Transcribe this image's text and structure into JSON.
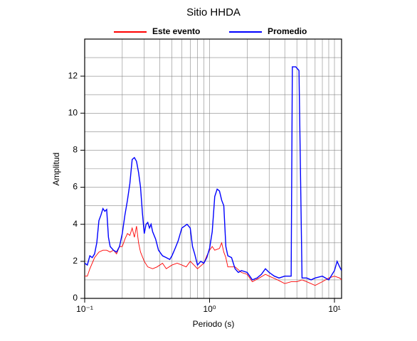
{
  "chart_data": {
    "type": "line",
    "title": "Sitio HHDA",
    "xlabel": "Periodo (s)",
    "ylabel": "Amplitud",
    "xscale": "log",
    "grid": true,
    "legend": "top",
    "xlim": [
      0.1,
      11.4
    ],
    "ylim": [
      0,
      14
    ],
    "xticks": [
      {
        "value": 0.1,
        "label": "10⁻¹"
      },
      {
        "value": 1,
        "label": "10⁰"
      },
      {
        "value": 10,
        "label": "10¹"
      }
    ],
    "xminor_ticks": [
      0.2,
      0.3,
      0.4,
      0.5,
      0.6,
      0.7,
      0.8,
      0.9,
      2,
      3,
      4,
      5,
      6,
      7,
      8,
      9
    ],
    "yticks": [
      0,
      2,
      4,
      6,
      8,
      10,
      12
    ],
    "yminor_ticks": [
      1,
      3,
      5,
      7,
      9,
      11,
      13
    ],
    "series": [
      {
        "name": "Este evento",
        "color": "#ff0000",
        "x": [
          0.1,
          0.105,
          0.11,
          0.12,
          0.13,
          0.14,
          0.15,
          0.16,
          0.17,
          0.18,
          0.19,
          0.2,
          0.21,
          0.22,
          0.23,
          0.24,
          0.25,
          0.26,
          0.27,
          0.28,
          0.3,
          0.32,
          0.35,
          0.38,
          0.42,
          0.45,
          0.5,
          0.55,
          0.6,
          0.65,
          0.7,
          0.75,
          0.8,
          0.9,
          0.95,
          1.0,
          1.05,
          1.1,
          1.2,
          1.25,
          1.3,
          1.35,
          1.4,
          1.6,
          1.8,
          2.0,
          2.2,
          2.5,
          2.8,
          3.0,
          3.5,
          4.0,
          4.5,
          5.0,
          5.5,
          6.0,
          7.0,
          8.0,
          9.0,
          10.0,
          11.0,
          11.4
        ],
        "values": [
          1.2,
          1.2,
          1.6,
          2.2,
          2.5,
          2.6,
          2.6,
          2.5,
          2.6,
          2.4,
          2.8,
          2.8,
          3.2,
          3.5,
          3.4,
          3.8,
          3.3,
          3.9,
          3.0,
          2.5,
          2.0,
          1.7,
          1.6,
          1.7,
          1.9,
          1.6,
          1.8,
          1.9,
          1.8,
          1.7,
          2.0,
          1.8,
          1.6,
          1.9,
          2.3,
          2.6,
          2.8,
          2.6,
          2.7,
          3.0,
          2.5,
          2.2,
          1.7,
          1.7,
          1.4,
          1.3,
          0.9,
          1.1,
          1.3,
          1.2,
          1.0,
          0.8,
          0.9,
          0.9,
          1.0,
          0.9,
          0.7,
          0.9,
          1.1,
          1.2,
          1.1,
          1.0
        ]
      },
      {
        "name": "Promedio",
        "color": "#0000ff",
        "x": [
          0.1,
          0.105,
          0.11,
          0.115,
          0.12,
          0.125,
          0.13,
          0.135,
          0.14,
          0.145,
          0.15,
          0.155,
          0.16,
          0.17,
          0.18,
          0.19,
          0.2,
          0.21,
          0.22,
          0.23,
          0.24,
          0.25,
          0.26,
          0.27,
          0.28,
          0.29,
          0.3,
          0.31,
          0.32,
          0.33,
          0.34,
          0.35,
          0.37,
          0.39,
          0.42,
          0.45,
          0.48,
          0.5,
          0.53,
          0.56,
          0.6,
          0.63,
          0.66,
          0.7,
          0.73,
          0.76,
          0.8,
          0.85,
          0.9,
          0.95,
          1.0,
          1.05,
          1.1,
          1.15,
          1.2,
          1.25,
          1.3,
          1.35,
          1.4,
          1.5,
          1.6,
          1.7,
          1.8,
          2.0,
          2.2,
          2.4,
          2.6,
          2.8,
          3.0,
          3.3,
          3.6,
          4.0,
          4.3,
          4.5,
          4.6,
          4.9,
          5.2,
          5.5,
          6.0,
          6.5,
          7.0,
          8.0,
          9.0,
          10.0,
          10.5,
          11.0,
          11.4
        ],
        "values": [
          1.9,
          1.8,
          2.3,
          2.2,
          2.4,
          3.0,
          4.2,
          4.5,
          4.85,
          4.7,
          4.8,
          3.3,
          2.8,
          2.6,
          2.5,
          2.8,
          3.5,
          4.5,
          5.3,
          6.2,
          7.5,
          7.6,
          7.4,
          6.8,
          6.0,
          4.6,
          3.5,
          4.0,
          4.1,
          3.8,
          4.0,
          3.6,
          3.2,
          2.6,
          2.3,
          2.2,
          2.1,
          2.3,
          2.7,
          3.1,
          3.8,
          3.9,
          4.0,
          3.8,
          2.8,
          2.4,
          1.8,
          2.0,
          1.9,
          2.2,
          2.7,
          3.6,
          5.5,
          5.9,
          5.8,
          5.3,
          5.0,
          2.8,
          2.3,
          2.2,
          1.6,
          1.4,
          1.5,
          1.4,
          1.0,
          1.1,
          1.3,
          1.6,
          1.4,
          1.2,
          1.1,
          1.2,
          1.2,
          1.2,
          12.5,
          12.5,
          12.3,
          1.1,
          1.1,
          1.0,
          1.1,
          1.2,
          1.0,
          1.5,
          2.0,
          1.7,
          1.5
        ]
      }
    ]
  }
}
